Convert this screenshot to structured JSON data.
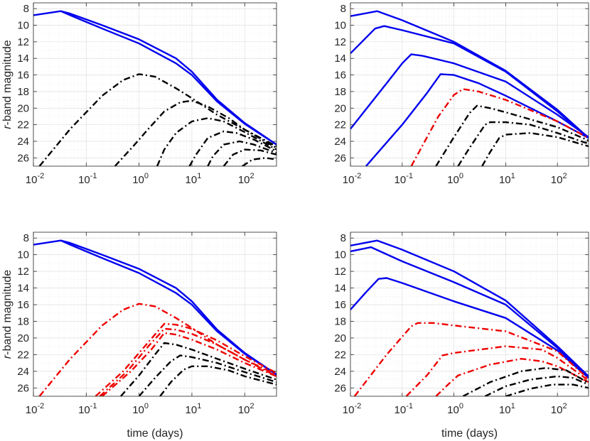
{
  "colors": {
    "blue": "#0000ee",
    "red": "#ee0000",
    "black": "#000000"
  },
  "chart_data": [
    {
      "type": "line",
      "panel": "top-left",
      "xscale": "log",
      "xlim": [
        0.01,
        400
      ],
      "ylim": [
        27,
        7.3
      ],
      "yreversed": true,
      "xlabel": "",
      "ylabel": "r-band magnitude",
      "xticks": [
        {
          "base": "10",
          "exp": "-2"
        },
        {
          "base": "10",
          "exp": "-1"
        },
        {
          "base": "10",
          "exp": "0"
        },
        {
          "base": "10",
          "exp": "1"
        },
        {
          "base": "10",
          "exp": "2"
        }
      ],
      "yticks": [
        "8",
        "10",
        "12",
        "14",
        "16",
        "18",
        "20",
        "22",
        "24",
        "26"
      ],
      "series": [
        {
          "color": "blue",
          "style": "solid",
          "x": [
            0.01,
            0.033,
            0.05,
            0.2,
            1,
            5,
            10,
            30,
            100,
            400
          ],
          "y": [
            8.8,
            8.3,
            8.8,
            10.4,
            12.2,
            14.6,
            16.0,
            19.2,
            21.9,
            24.4
          ]
        },
        {
          "color": "blue",
          "style": "solid",
          "x": [
            0.033,
            0.05,
            0.2,
            1,
            5,
            10,
            30,
            100,
            400
          ],
          "y": [
            8.3,
            8.6,
            10.0,
            11.7,
            14.0,
            15.6,
            19.0,
            21.8,
            24.4
          ]
        },
        {
          "color": "black",
          "style": "dashdot",
          "x": [
            0.013,
            0.05,
            0.2,
            0.5,
            1.0,
            2,
            5,
            10,
            30,
            100,
            400
          ],
          "y": [
            27,
            22.5,
            18.5,
            16.6,
            15.9,
            16.2,
            17.6,
            18.8,
            20.8,
            22.6,
            24.6
          ]
        },
        {
          "color": "black",
          "style": "dashdot",
          "x": [
            0.35,
            0.8,
            1.5,
            3,
            6,
            10,
            20,
            50,
            100,
            400
          ],
          "y": [
            27,
            24.5,
            22.5,
            20.4,
            19.3,
            19.1,
            19.8,
            21.2,
            22.6,
            24.8
          ]
        },
        {
          "color": "black",
          "style": "dashdot",
          "x": [
            2.2,
            3,
            5,
            10,
            20,
            40,
            100,
            400
          ],
          "y": [
            27,
            25.0,
            23.0,
            21.6,
            21.2,
            21.6,
            22.9,
            25.0
          ]
        },
        {
          "color": "black",
          "style": "dashdot",
          "x": [
            9,
            12,
            20,
            40,
            70,
            150,
            400
          ],
          "y": [
            27,
            25.6,
            23.6,
            22.8,
            23.0,
            23.8,
            25.2
          ]
        },
        {
          "color": "black",
          "style": "dashdot",
          "x": [
            20,
            25,
            40,
            80,
            150,
            400
          ],
          "y": [
            27,
            25.8,
            24.4,
            24.0,
            24.4,
            25.4
          ]
        },
        {
          "color": "black",
          "style": "dashdot",
          "x": [
            40,
            60,
            100,
            200,
            400
          ],
          "y": [
            27,
            25.6,
            25.0,
            25.1,
            25.6
          ]
        },
        {
          "color": "black",
          "style": "dashdot",
          "x": [
            90,
            140,
            250,
            400
          ],
          "y": [
            27,
            26.2,
            26.0,
            26.2
          ]
        }
      ]
    },
    {
      "type": "line",
      "panel": "top-right",
      "xscale": "log",
      "xlim": [
        0.01,
        400
      ],
      "ylim": [
        27,
        7.3
      ],
      "yreversed": true,
      "xlabel": "",
      "ylabel": "",
      "xticks": [
        {
          "base": "10",
          "exp": "-2"
        },
        {
          "base": "10",
          "exp": "-1"
        },
        {
          "base": "10",
          "exp": "0"
        },
        {
          "base": "10",
          "exp": "1"
        },
        {
          "base": "10",
          "exp": "2"
        }
      ],
      "yticks": [
        "8",
        "10",
        "12",
        "14",
        "16",
        "18",
        "20",
        "22",
        "24",
        "26"
      ],
      "series": [
        {
          "color": "blue",
          "style": "solid",
          "x": [
            0.01,
            0.033,
            0.1,
            1,
            10,
            100,
            400
          ],
          "y": [
            8.9,
            8.3,
            9.4,
            12.0,
            15.5,
            20.2,
            23.6
          ]
        },
        {
          "color": "blue",
          "style": "solid",
          "x": [
            0.01,
            0.03,
            0.045,
            0.1,
            1,
            10,
            100,
            400
          ],
          "y": [
            13.4,
            10.4,
            10.1,
            10.6,
            12.2,
            15.6,
            20.4,
            23.6
          ]
        },
        {
          "color": "blue",
          "style": "solid",
          "x": [
            0.01,
            0.05,
            0.1,
            0.15,
            0.25,
            1,
            10,
            100,
            400
          ],
          "y": [
            22.5,
            17.0,
            14.6,
            13.5,
            13.7,
            14.6,
            16.8,
            20.8,
            23.5
          ]
        },
        {
          "color": "blue",
          "style": "solid",
          "x": [
            0.02,
            0.1,
            0.3,
            0.55,
            1,
            3,
            10,
            100,
            400
          ],
          "y": [
            27,
            22.0,
            18.2,
            15.9,
            16.0,
            17.0,
            18.5,
            21.6,
            23.6
          ]
        },
        {
          "color": "red",
          "style": "dashdot",
          "x": [
            0.15,
            0.5,
            1.0,
            1.5,
            3,
            10,
            100,
            400
          ],
          "y": [
            27,
            21.0,
            18.4,
            17.7,
            18.0,
            19.0,
            21.6,
            23.6
          ]
        },
        {
          "color": "black",
          "style": "dashdot",
          "x": [
            0.45,
            1,
            2,
            2.8,
            5,
            10,
            100,
            400
          ],
          "y": [
            27,
            23.5,
            20.6,
            19.7,
            20.0,
            20.5,
            22.3,
            23.9
          ]
        },
        {
          "color": "black",
          "style": "dashdot",
          "x": [
            1.2,
            2,
            4,
            5,
            10,
            30,
            100,
            400
          ],
          "y": [
            27,
            24.8,
            22.0,
            21.7,
            21.7,
            22.0,
            23.0,
            24.3
          ]
        },
        {
          "color": "black",
          "style": "dashdot",
          "x": [
            3.5,
            5,
            7.5,
            10,
            30,
            100,
            400
          ],
          "y": [
            27,
            25.3,
            23.6,
            23.2,
            23.0,
            23.5,
            24.6
          ]
        }
      ]
    },
    {
      "type": "line",
      "panel": "bottom-left",
      "xscale": "log",
      "xlim": [
        0.01,
        400
      ],
      "ylim": [
        27,
        7.3
      ],
      "yreversed": true,
      "xlabel": "time (days)",
      "ylabel": "r-band magnitude",
      "xticks": [
        {
          "base": "10",
          "exp": "-2"
        },
        {
          "base": "10",
          "exp": "-1"
        },
        {
          "base": "10",
          "exp": "0"
        },
        {
          "base": "10",
          "exp": "1"
        },
        {
          "base": "10",
          "exp": "2"
        }
      ],
      "yticks": [
        "8",
        "10",
        "12",
        "14",
        "16",
        "18",
        "20",
        "22",
        "24",
        "26"
      ],
      "series": [
        {
          "color": "blue",
          "style": "solid",
          "x": [
            0.01,
            0.033,
            0.05,
            0.2,
            1,
            5,
            10,
            30,
            100,
            400
          ],
          "y": [
            8.8,
            8.3,
            8.8,
            10.4,
            12.2,
            14.6,
            16.0,
            19.2,
            21.9,
            24.4
          ]
        },
        {
          "color": "blue",
          "style": "solid",
          "x": [
            0.033,
            0.05,
            0.2,
            1,
            5,
            10,
            30,
            100,
            400
          ],
          "y": [
            8.3,
            8.6,
            10.0,
            11.7,
            14.0,
            15.6,
            19.0,
            21.8,
            24.4
          ]
        },
        {
          "color": "red",
          "style": "dashdot",
          "x": [
            0.013,
            0.05,
            0.2,
            0.5,
            1.0,
            2,
            5,
            10,
            30,
            100,
            400
          ],
          "y": [
            27,
            22.5,
            18.5,
            16.6,
            15.9,
            16.2,
            17.6,
            18.8,
            20.8,
            22.6,
            24.6
          ]
        },
        {
          "color": "red",
          "style": "dashdot",
          "x": [
            0.15,
            0.5,
            1.5,
            3,
            5,
            10,
            30,
            100,
            400
          ],
          "y": [
            27,
            24.0,
            20.5,
            18.3,
            18.4,
            18.9,
            20.3,
            22.2,
            24.2
          ]
        },
        {
          "color": "red",
          "style": "dashdot",
          "x": [
            0.18,
            0.6,
            1.5,
            3,
            5,
            10,
            30,
            100,
            400
          ],
          "y": [
            27,
            24.0,
            21.0,
            18.9,
            19.0,
            19.5,
            20.8,
            22.6,
            24.4
          ]
        },
        {
          "color": "red",
          "style": "dashdot",
          "x": [
            0.2,
            0.7,
            1.7,
            3,
            5,
            10,
            30,
            100,
            400
          ],
          "y": [
            27,
            24.0,
            21.4,
            19.4,
            19.6,
            20.2,
            21.4,
            23.0,
            24.6
          ]
        },
        {
          "color": "black",
          "style": "dashdot",
          "x": [
            0.45,
            1,
            2,
            3,
            5,
            10,
            30,
            100,
            400
          ],
          "y": [
            27,
            24.5,
            22.0,
            20.6,
            20.8,
            21.4,
            22.5,
            23.7,
            25.0
          ]
        },
        {
          "color": "black",
          "style": "dashdot",
          "x": [
            1.0,
            2,
            4,
            6,
            10,
            30,
            100,
            400
          ],
          "y": [
            27,
            24.8,
            22.8,
            22.1,
            22.3,
            23.0,
            24.1,
            25.3
          ]
        },
        {
          "color": "black",
          "style": "dashdot",
          "x": [
            2.5,
            4,
            7,
            10,
            20,
            50,
            100,
            400
          ],
          "y": [
            27,
            25.3,
            23.8,
            23.4,
            23.4,
            23.9,
            24.6,
            25.6
          ]
        }
      ]
    },
    {
      "type": "line",
      "panel": "bottom-right",
      "xscale": "log",
      "xlim": [
        0.01,
        400
      ],
      "ylim": [
        27,
        7.3
      ],
      "yreversed": true,
      "xlabel": "time (days)",
      "ylabel": "",
      "xticks": [
        {
          "base": "10",
          "exp": "-2"
        },
        {
          "base": "10",
          "exp": "-1"
        },
        {
          "base": "10",
          "exp": "0"
        },
        {
          "base": "10",
          "exp": "1"
        },
        {
          "base": "10",
          "exp": "2"
        }
      ],
      "yticks": [
        "8",
        "10",
        "12",
        "14",
        "16",
        "18",
        "20",
        "22",
        "24",
        "26"
      ],
      "series": [
        {
          "color": "blue",
          "style": "solid",
          "x": [
            0.01,
            0.033,
            0.1,
            1,
            10,
            100,
            400
          ],
          "y": [
            8.9,
            8.3,
            9.4,
            12.0,
            15.5,
            21.0,
            24.6
          ]
        },
        {
          "color": "blue",
          "style": "solid",
          "x": [
            0.01,
            0.025,
            0.1,
            1,
            10,
            100,
            400
          ],
          "y": [
            9.6,
            9.1,
            10.8,
            13.3,
            16.0,
            21.2,
            24.7
          ]
        },
        {
          "color": "blue",
          "style": "solid",
          "x": [
            0.01,
            0.02,
            0.035,
            0.05,
            0.1,
            1,
            10,
            100,
            400
          ],
          "y": [
            16.6,
            14.5,
            12.9,
            12.8,
            13.4,
            15.6,
            17.6,
            21.5,
            24.8
          ]
        },
        {
          "color": "red",
          "style": "dashdot",
          "x": [
            0.012,
            0.05,
            0.15,
            0.2,
            0.4,
            1,
            10,
            100,
            400
          ],
          "y": [
            27,
            22.0,
            18.6,
            18.2,
            18.2,
            18.5,
            19.2,
            21.6,
            24.9
          ]
        },
        {
          "color": "red",
          "style": "dashdot",
          "x": [
            0.12,
            0.3,
            0.6,
            1,
            10,
            50,
            100,
            400
          ],
          "y": [
            27,
            24.5,
            22.1,
            21.8,
            21.0,
            21.4,
            22.4,
            25.1
          ]
        },
        {
          "color": "red",
          "style": "dashdot",
          "x": [
            0.45,
            0.8,
            1.2,
            5,
            20,
            50,
            100,
            400
          ],
          "y": [
            27,
            25.5,
            24.5,
            23.2,
            22.5,
            22.8,
            23.4,
            25.3
          ]
        },
        {
          "color": "black",
          "style": "dashdot",
          "x": [
            1.5,
            5,
            20,
            60,
            150,
            400
          ],
          "y": [
            27,
            25.3,
            24.0,
            23.6,
            23.9,
            25.4
          ]
        },
        {
          "color": "black",
          "style": "dashdot",
          "x": [
            4,
            10,
            30,
            100,
            200,
            400
          ],
          "y": [
            27,
            25.8,
            25.0,
            24.6,
            24.8,
            25.6
          ]
        },
        {
          "color": "black",
          "style": "dashdot",
          "x": [
            10,
            30,
            80,
            200,
            400
          ],
          "y": [
            27,
            26.1,
            25.6,
            25.6,
            26.0
          ]
        }
      ]
    }
  ]
}
